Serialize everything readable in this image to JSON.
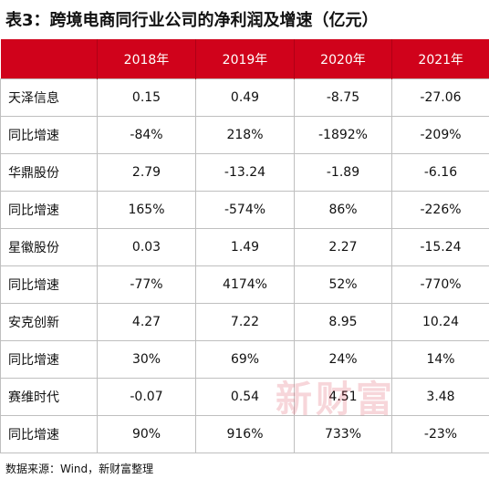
{
  "title": "表3：跨境电商同行业公司的净利润及增速（亿元）",
  "table": {
    "headers": [
      "",
      "2018年",
      "2019年",
      "2020年",
      "2021年"
    ],
    "rows": [
      [
        "天泽信息",
        "0.15",
        "0.49",
        "-8.75",
        "-27.06"
      ],
      [
        "同比增速",
        "-84%",
        "218%",
        "-1892%",
        "-209%"
      ],
      [
        "华鼎股份",
        "2.79",
        "-13.24",
        "-1.89",
        "-6.16"
      ],
      [
        "同比增速",
        "165%",
        "-574%",
        "86%",
        "-226%"
      ],
      [
        "星徽股份",
        "0.03",
        "1.49",
        "2.27",
        "-15.24"
      ],
      [
        "同比增速",
        "-77%",
        "4174%",
        "52%",
        "-770%"
      ],
      [
        "安克创新",
        "4.27",
        "7.22",
        "8.95",
        "10.24"
      ],
      [
        "同比增速",
        "30%",
        "69%",
        "24%",
        "14%"
      ],
      [
        "赛维时代",
        "-0.07",
        "0.54",
        "4.51",
        "3.48"
      ],
      [
        "同比增速",
        "90%",
        "916%",
        "733%",
        "-23%"
      ]
    ]
  },
  "watermark": "新财富",
  "source": "数据来源：Wind，新财富整理",
  "colors": {
    "header_bg": "#d0021b",
    "header_text": "#ffffff",
    "border": "#bfbfbf"
  }
}
